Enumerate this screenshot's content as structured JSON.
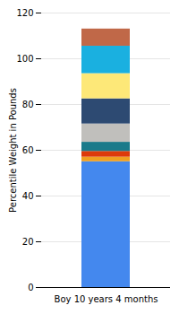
{
  "chart_data": {
    "type": "bar",
    "stacked": true,
    "ylabel": "Percentile Weight in Pounds",
    "categories": [
      "Boy 10 years 4 months"
    ],
    "series": [
      {
        "color": "#4488ee",
        "values": [
          55.0
        ]
      },
      {
        "color": "#f0a020",
        "values": [
          2.0
        ]
      },
      {
        "color": "#dd3a0a",
        "values": [
          2.5
        ]
      },
      {
        "color": "#1a7a8a",
        "values": [
          4.0
        ]
      },
      {
        "color": "#c0bfbc",
        "values": [
          8.0
        ]
      },
      {
        "color": "#2d4a72",
        "values": [
          11.0
        ]
      },
      {
        "color": "#fde878",
        "values": [
          11.0
        ]
      },
      {
        "color": "#1ab0e0",
        "values": [
          12.0
        ]
      },
      {
        "color": "#c06848",
        "values": [
          7.5
        ]
      }
    ],
    "ylim": [
      0,
      120
    ],
    "yticks": [
      0,
      20,
      40,
      60,
      80,
      100,
      120
    ],
    "grid": true
  }
}
